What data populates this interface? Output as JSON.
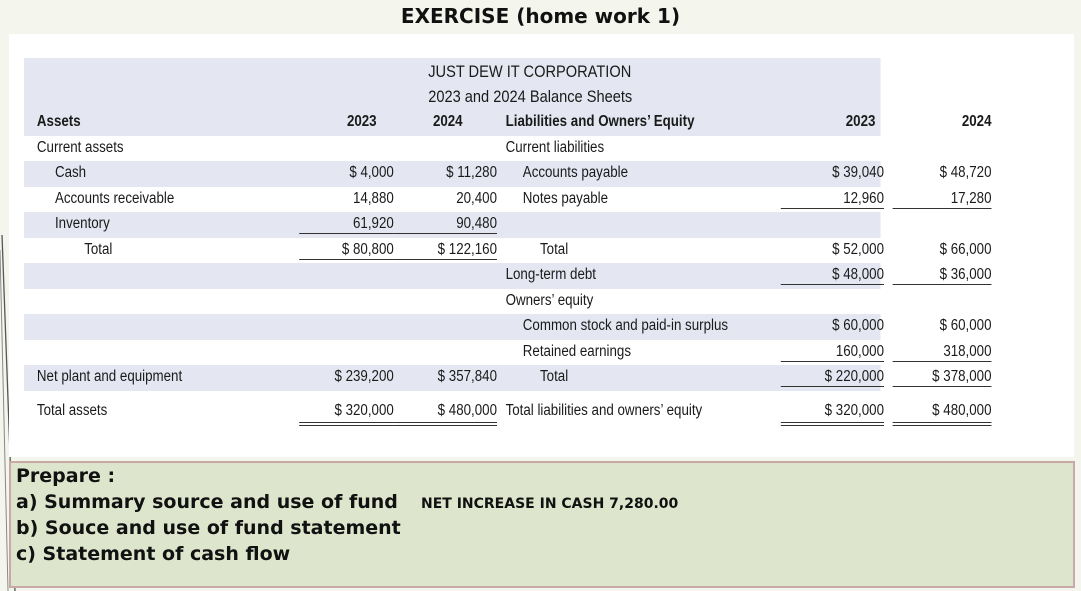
{
  "slide_title": "EXERCISE (home work 1)",
  "sheet": {
    "company": "JUST DEW IT CORPORATION",
    "subtitle": "2023 and 2024 Balance Sheets",
    "assets_header": "Assets",
    "liab_header": "Liabilities and Owners’ Equity",
    "year1": "2023",
    "year2": "2024",
    "rows": {
      "current_assets": "Current assets",
      "current_liabilities": "Current liabilities",
      "cash": {
        "label": "Cash",
        "y1": "$ 4,000",
        "y2": "$ 11,280"
      },
      "ap": {
        "label": "Accounts payable",
        "y1": "$ 39,040",
        "y2": "$ 48,720"
      },
      "ar": {
        "label": "Accounts receivable",
        "y1": "14,880",
        "y2": "20,400"
      },
      "np": {
        "label": "Notes payable",
        "y1": "12,960",
        "y2": "17,280"
      },
      "inventory": {
        "label": "Inventory",
        "y1": "61,920",
        "y2": "90,480"
      },
      "total_ca": {
        "label": "Total",
        "y1": "$ 80,800",
        "y2": "$ 122,160"
      },
      "total_cl": {
        "label": "Total",
        "y1": "$ 52,000",
        "y2": "$ 66,000"
      },
      "ltd": {
        "label": "Long-term debt",
        "y1": "$ 48,000",
        "y2": "$ 36,000"
      },
      "owners_equity": "Owners’ equity",
      "cs": {
        "label": "Common stock and paid-in surplus",
        "y1": "$ 60,000",
        "y2": "$ 60,000"
      },
      "re": {
        "label": "Retained earnings",
        "y1": "160,000",
        "y2": "318,000"
      },
      "npe": {
        "label": "Net plant and equipment",
        "y1": "$ 239,200",
        "y2": "$ 357,840"
      },
      "total_oe": {
        "label": "Total",
        "y1": "$ 220,000",
        "y2": "$ 378,000"
      },
      "total_assets": {
        "label": "Total assets",
        "y1": "$ 320,000",
        "y2": "$ 480,000"
      },
      "total_le": {
        "label": "Total liabilities and owners’ equity",
        "y1": "$ 320,000",
        "y2": "$ 480,000"
      }
    }
  },
  "prepare": {
    "heading": "Prepare :",
    "items": [
      "a) Summary source and use of fund",
      "b) Souce and use of fund statement",
      "c) Statement of cash flow"
    ],
    "net_increase": "NET INCREASE IN CASH 7,280.00"
  }
}
